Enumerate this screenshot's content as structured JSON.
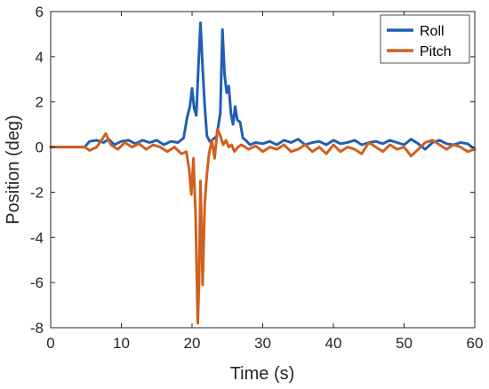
{
  "chart_data": {
    "type": "line",
    "xlabel": "Time (s)",
    "ylabel": "Position (deg)",
    "xlim": [
      0,
      60
    ],
    "ylim": [
      -8,
      6
    ],
    "xticks": [
      "0",
      "10",
      "20",
      "30",
      "40",
      "50",
      "60"
    ],
    "yticks": [
      "-8",
      "-6",
      "-4",
      "-2",
      "0",
      "2",
      "4",
      "6"
    ],
    "grid": false,
    "legend_position": "top-right",
    "series": [
      {
        "name": "Roll",
        "color": "#1f5fb4",
        "x": [
          0,
          4.8,
          5.5,
          6.5,
          7.5,
          8.2,
          9.0,
          10.0,
          11.0,
          12.0,
          13.0,
          14.0,
          15.0,
          16.0,
          17.0,
          18.0,
          18.8,
          19.3,
          19.7,
          20.0,
          20.3,
          20.6,
          20.9,
          21.2,
          21.5,
          21.8,
          22.1,
          22.5,
          23.0,
          23.5,
          24.0,
          24.3,
          24.6,
          24.9,
          25.2,
          25.5,
          25.8,
          26.1,
          26.4,
          26.8,
          27.2,
          27.6,
          28.2,
          29.0,
          30.0,
          31.0,
          32.0,
          33.0,
          34.0,
          35.0,
          36.0,
          37.0,
          38.0,
          39.0,
          40.0,
          41.0,
          42.0,
          43.0,
          44.0,
          45.0,
          46.0,
          47.0,
          48.0,
          49.0,
          50.0,
          51.0,
          52.0,
          53.0,
          54.0,
          55.0,
          56.0,
          57.0,
          58.0,
          59.0,
          60.0
        ],
        "values": [
          0.0,
          0.0,
          0.25,
          0.3,
          0.2,
          0.35,
          0.1,
          0.25,
          0.3,
          0.15,
          0.3,
          0.2,
          0.3,
          0.1,
          0.25,
          0.2,
          0.4,
          1.3,
          1.8,
          2.6,
          1.7,
          1.4,
          3.6,
          5.5,
          3.5,
          1.8,
          0.5,
          0.25,
          0.35,
          0.5,
          1.5,
          5.2,
          3.2,
          2.4,
          2.7,
          1.5,
          1.0,
          1.8,
          1.2,
          1.1,
          0.4,
          0.3,
          0.1,
          0.2,
          0.15,
          0.25,
          0.1,
          0.3,
          0.2,
          0.35,
          0.1,
          0.2,
          0.25,
          0.1,
          0.3,
          0.15,
          0.2,
          0.3,
          0.1,
          0.2,
          0.25,
          0.15,
          0.3,
          0.2,
          0.1,
          0.35,
          0.15,
          -0.1,
          0.2,
          0.3,
          0.15,
          0.1,
          0.2,
          0.15,
          -0.1
        ]
      },
      {
        "name": "Pitch",
        "color": "#d0601e",
        "x": [
          0,
          4.8,
          5.5,
          6.5,
          7.2,
          7.8,
          8.5,
          9.5,
          10.5,
          11.5,
          12.5,
          13.5,
          14.5,
          15.5,
          16.5,
          17.5,
          18.5,
          19.2,
          19.6,
          19.9,
          20.2,
          20.5,
          20.8,
          21.0,
          21.2,
          21.5,
          21.8,
          22.1,
          22.4,
          22.8,
          23.2,
          23.6,
          24.0,
          24.4,
          24.8,
          25.2,
          25.6,
          26.0,
          26.5,
          27.0,
          28.0,
          29.0,
          30.0,
          31.0,
          32.0,
          33.0,
          34.0,
          35.0,
          36.0,
          37.0,
          38.0,
          39.0,
          40.0,
          41.0,
          42.0,
          43.0,
          44.0,
          45.0,
          46.0,
          47.0,
          48.0,
          49.0,
          50.0,
          51.0,
          52.0,
          53.0,
          54.0,
          55.0,
          56.0,
          57.0,
          58.0,
          59.0,
          60.0
        ],
        "values": [
          0.0,
          0.0,
          -0.15,
          0.0,
          0.3,
          0.6,
          0.1,
          -0.1,
          0.2,
          0.0,
          0.15,
          -0.1,
          0.1,
          0.0,
          -0.2,
          0.0,
          -0.3,
          -0.2,
          -1.0,
          -2.1,
          -0.5,
          -3.0,
          -7.8,
          -6.0,
          -1.5,
          -6.1,
          -2.5,
          -1.2,
          -0.3,
          0.3,
          -0.5,
          0.8,
          0.5,
          0.1,
          0.3,
          0.0,
          0.1,
          -0.2,
          0.0,
          0.1,
          -0.1,
          0.05,
          -0.2,
          0.0,
          -0.1,
          0.1,
          -0.2,
          -0.1,
          0.1,
          -0.2,
          0.0,
          -0.3,
          0.1,
          -0.2,
          0.0,
          -0.1,
          -0.3,
          0.2,
          0.0,
          -0.2,
          0.1,
          -0.1,
          0.0,
          -0.4,
          -0.1,
          0.2,
          0.3,
          0.1,
          -0.1,
          0.1,
          0.0,
          -0.2,
          -0.1
        ]
      }
    ]
  }
}
